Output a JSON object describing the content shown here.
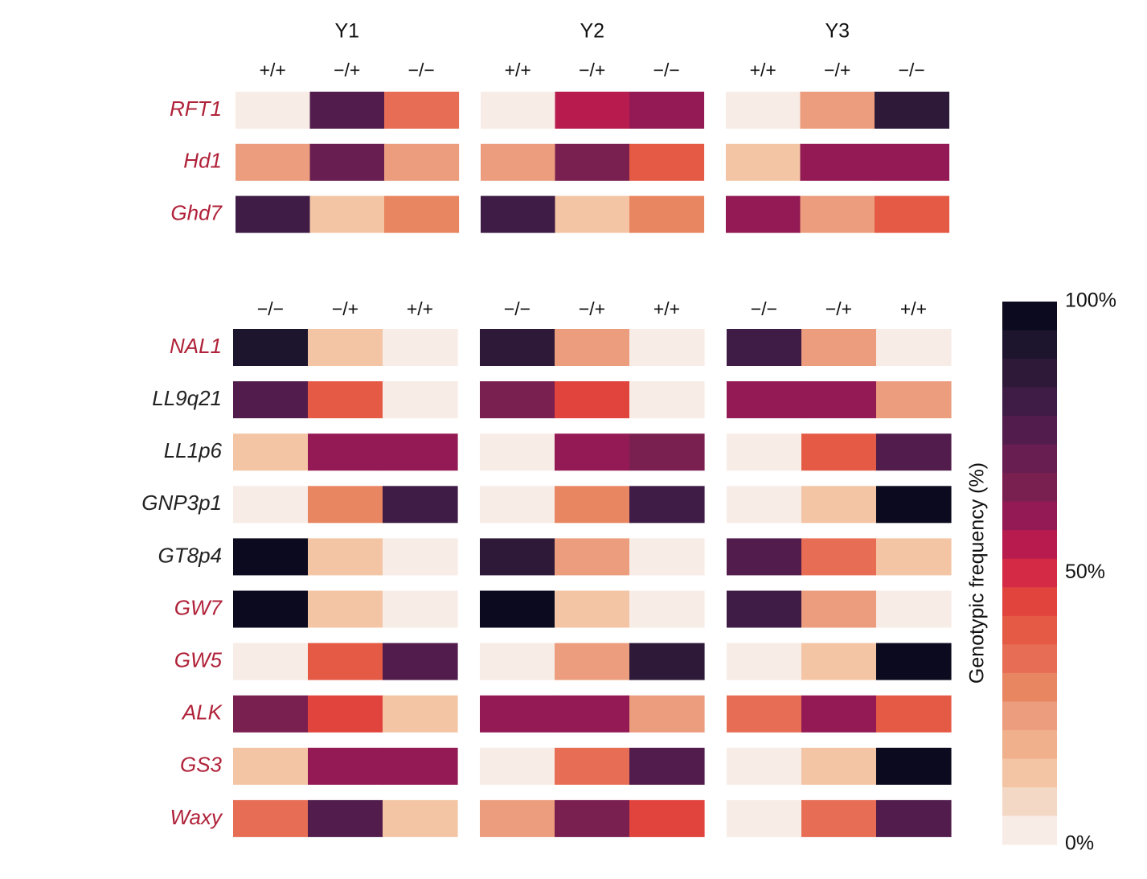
{
  "chart_data": {
    "type": "heatmap",
    "color_legend": {
      "label": "Genotypic frequency (%)",
      "tick_labels": [
        "100%",
        "50%",
        "0%"
      ],
      "colors_high_to_low": [
        "#0b0a1e",
        "#1d142e",
        "#2e1a38",
        "#3f1c46",
        "#521d4c",
        "#691e52",
        "#7a2050",
        "#931a54",
        "#b81c4e",
        "#d42a45",
        "#e0443c",
        "#e55a45",
        "#e76e55",
        "#e98662",
        "#eb9d7e",
        "#f0b08c",
        "#f4c5a5",
        "#f4d8c6",
        "#f8ece6"
      ]
    },
    "gene_colors": {
      "highlight": "#b02239",
      "normal": "#222222"
    },
    "panels": [
      {
        "name": "top",
        "years": [
          "Y1",
          "Y2",
          "Y3"
        ],
        "genotypes": [
          "+/+",
          "−/+",
          "−/−"
        ],
        "rows": [
          {
            "gene": "RFT1",
            "highlight": true,
            "cells": [
              [
                4,
                78,
                32
              ],
              [
                4,
                57,
                61
              ],
              [
                4,
                25,
                88
              ]
            ]
          },
          {
            "gene": "Hd1",
            "highlight": true,
            "cells": [
              [
                25,
                72,
                23
              ],
              [
                25,
                66,
                37
              ],
              [
                12,
                58,
                63
              ]
            ]
          },
          {
            "gene": "Ghd7",
            "highlight": true,
            "cells": [
              [
                80,
                12,
                27
              ],
              [
                80,
                12,
                27
              ],
              [
                62,
                24,
                41
              ]
            ]
          }
        ]
      },
      {
        "name": "bottom",
        "years": [
          "Y1",
          "Y2",
          "Y3"
        ],
        "genotypes": [
          "−/−",
          "−/+",
          "+/+"
        ],
        "rows": [
          {
            "gene": "NAL1",
            "highlight": true,
            "cells": [
              [
                94,
                13,
                4
              ],
              [
                88,
                24,
                4
              ],
              [
                84,
                26,
                4
              ]
            ]
          },
          {
            "gene": "LL9q21",
            "highlight": false,
            "cells": [
              [
                74,
                42,
                4
              ],
              [
                67,
                44,
                4
              ],
              [
                62,
                62,
                23
              ]
            ]
          },
          {
            "gene": "LL1p6",
            "highlight": false,
            "cells": [
              [
                14,
                60,
                60
              ],
              [
                4,
                62,
                64
              ],
              [
                4,
                42,
                74
              ]
            ]
          },
          {
            "gene": "GNP3p1",
            "highlight": false,
            "cells": [
              [
                4,
                27,
                84
              ],
              [
                4,
                27,
                84
              ],
              [
                4,
                15,
                95
              ]
            ]
          },
          {
            "gene": "GT8p4",
            "highlight": false,
            "cells": [
              [
                95,
                14,
                4
              ],
              [
                88,
                24,
                4
              ],
              [
                74,
                35,
                14
              ]
            ]
          },
          {
            "gene": "GW7",
            "highlight": true,
            "cells": [
              [
                95,
                14,
                4
              ],
              [
                96,
                14,
                4
              ],
              [
                84,
                24,
                4
              ]
            ]
          },
          {
            "gene": "GW5",
            "highlight": true,
            "cells": [
              [
                4,
                42,
                76
              ],
              [
                4,
                24,
                88
              ],
              [
                4,
                14,
                95
              ]
            ]
          },
          {
            "gene": "ALK",
            "highlight": true,
            "cells": [
              [
                64,
                47,
                14
              ],
              [
                62,
                62,
                23
              ],
              [
                35,
                60,
                41
              ]
            ]
          },
          {
            "gene": "GS3",
            "highlight": true,
            "cells": [
              [
                14,
                62,
                59
              ],
              [
                4,
                36,
                76
              ],
              [
                4,
                14,
                97
              ]
            ]
          },
          {
            "gene": "Waxy",
            "highlight": true,
            "cells": [
              [
                35,
                74,
                14
              ],
              [
                24,
                64,
                44
              ],
              [
                4,
                36,
                76
              ]
            ]
          }
        ]
      }
    ]
  }
}
